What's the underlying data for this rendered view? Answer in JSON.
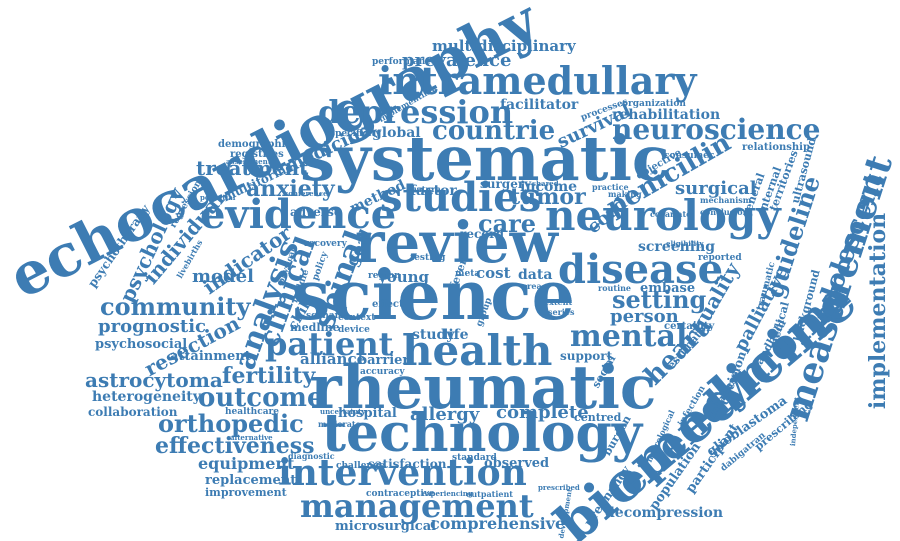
{
  "word_color": "#3d7cb3",
  "background": "#ffffff",
  "words": {
    "echocardiography": "echocardiography",
    "systematic": "systematic",
    "science": "science",
    "review": "review",
    "rheumatic": "rheumatic",
    "technology": "technology",
    "biomedicine": "biomedicine",
    "intramedullary": "intramedullary",
    "health": "health",
    "neurology": "neurology",
    "studies": "studies",
    "disease": "disease",
    "evidence": "evidence",
    "intervention": "intervention",
    "ependymoma": "ependymoma",
    "measurement": "measurement",
    "depression": "depression",
    "neuroscience": "neuroscience",
    "management": "management",
    "patient": "patient",
    "mental": "mental",
    "analysis": "analysis",
    "community": "community",
    "countrie": "countrie",
    "implementation": "implementation",
    "spinal": "spinal",
    "adolescent": "adolescent",
    "clinical": "clinical",
    "heart": "heart",
    "psychology": "psychology",
    "outcome": "outcome",
    "orthopedic": "orthopedic",
    "astrocytoma": "astrocytoma",
    "effectiveness": "effectiveness",
    "fertility": "fertility",
    "setting": "setting",
    "penicillin": "penicillin",
    "anxiety": "anxiety",
    "treatment": "treatment",
    "prognostic": "prognostic",
    "resection": "resection",
    "guideline": "guideline",
    "multidisciplinary": "multidisciplinary",
    "prevalence": "prevalence",
    "tumor": "tumor",
    "care": "care",
    "individual": "individual",
    "indicator": "indicator",
    "psychosocial": "psychosocial",
    "heterogeneity": "heterogeneity",
    "equipment": "equipment",
    "comprehensive": "comprehensive",
    "decompression": "decompression",
    "complete": "complete",
    "allergy": "allergy",
    "palliative": "palliative",
    "quality": "quality",
    "person": "person",
    "cord": "cord",
    "model": "model",
    "medicine": "medicine",
    "survival": "survival",
    "facilitator": "facilitator",
    "rehabilitation": "rehabilitation",
    "global": "global",
    "surgical": "surgical",
    "screening": "screening",
    "replacement": "replacement",
    "improvement": "improvement",
    "microsurgical": "microsurgical",
    "collaboration": "collaboration",
    "attainment": "attainment",
    "alliance": "alliance",
    "hospital": "hospital",
    "observed": "observed",
    "glioblastoma": "glioblastoma",
    "participant": "participant",
    "population": "population",
    "pregnancy": "pregnancy",
    "satisfaction": "satisfaction",
    "goal": "goal",
    "income": "income",
    "factor": "factor",
    "surgery": "surgery",
    "method": "method",
    "registries": "registries",
    "multiforme": "multiforme",
    "demographic": "demographic",
    "psychotherapy": "psychotherapy",
    "adverse": "adverse",
    "record": "record",
    "cost": "cost",
    "young": "young",
    "child": "child",
    "data": "data",
    "embase": "embase",
    "barrier": "barrier",
    "study": "study",
    "life": "life",
    "support": "support",
    "social": "social",
    "medline": "medline",
    "handheld": "handheld",
    "background": "background",
    "traumatic": "traumatic",
    "medical": "medical",
    "criteria": "criteria",
    "disorder": "disorder",
    "database": "database",
    "decision": "decision",
    "general": "general",
    "internal": "internal",
    "territories": "territories",
    "ultrasound": "ultrasound",
    "relationship": "relationship",
    "objective": "objective",
    "consumer": "consumer",
    "processes": "processes",
    "organization": "organization",
    "performance": "performance",
    "implementing": "implementing",
    "specificity": "specificity",
    "standard": "standard",
    "challenge": "challenge",
    "diagnostic": "diagnostic",
    "healthcare": "healthcare",
    "accuracy": "accuracy",
    "contraceptive": "contraceptive",
    "experiencing": "experiencing",
    "outpatient": "outpatient",
    "centred": "centred",
    "burden": "burden",
    "prescribing": "prescribing",
    "infection": "infection",
    "estimate": "estimate",
    "certainty": "certainty",
    "reported": "reported",
    "regression": "regression",
    "livebirths": "livebirths",
    "recovery": "recovery",
    "testing": "testing",
    "effect": "effect",
    "region": "region",
    "device": "device",
    "feature": "feature",
    "mechanism": "mechanism",
    "conclusion": "conclusion",
    "covariate": "covariate",
    "eligibility": "eligibility",
    "scenario": "scenario",
    "context": "context",
    "policy": "policy",
    "physical": "physical",
    "middle": "middle",
    "area": "area",
    "extent": "extent",
    "series": "series",
    "fever": "fever",
    "group": "group",
    "meta": "meta",
    "routine": "routine",
    "independent": "independent",
    "dabigatran": "dabigatran",
    "neurological": "neurological",
    "alternative": "alternative",
    "uncertainty": "uncertainty",
    "moderate": "moderate",
    "potential": "potential",
    "making": "making",
    "shared": "shared",
    "practice": "practice",
    "prescribed": "prescribed",
    "development": "development",
    "assessment": "assessment",
    "conference": "conference"
  }
}
